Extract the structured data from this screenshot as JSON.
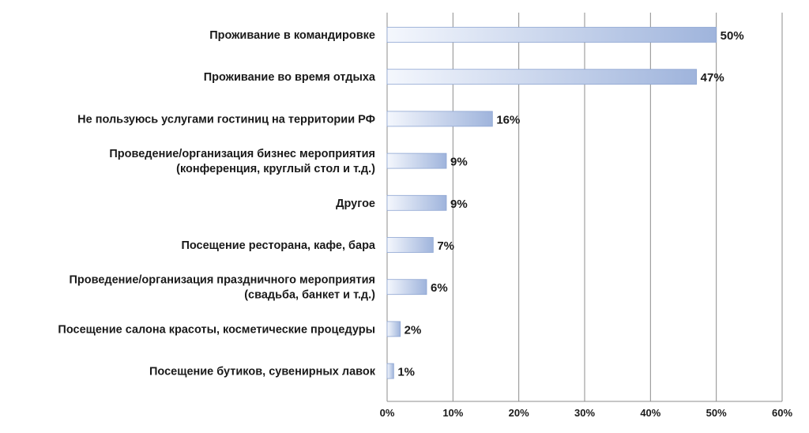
{
  "chart_data": {
    "type": "bar",
    "orientation": "horizontal",
    "categories": [
      [
        "Проживание в командировке"
      ],
      [
        "Проживание во время отдыха"
      ],
      [
        "Не пользуюсь услугами гостиниц на территории РФ"
      ],
      [
        "Проведение/организация бизнес мероприятия",
        "(конференция, круглый стол и т.д.)"
      ],
      [
        "Другое"
      ],
      [
        "Посещение ресторана, кафе, бара"
      ],
      [
        "Проведение/организация праздничного мероприятия",
        "(свадьба, банкет и т.д.)"
      ],
      [
        "Посещение салона красоты, косметические процедуры"
      ],
      [
        "Посещение бутиков, сувенирных лавок"
      ]
    ],
    "values": [
      50,
      47,
      16,
      9,
      9,
      7,
      6,
      2,
      1
    ],
    "value_labels": [
      "50%",
      "47%",
      "16%",
      "9%",
      "9%",
      "7%",
      "6%",
      "2%",
      "1%"
    ],
    "xlim": [
      0,
      60
    ],
    "x_ticks": [
      "0%",
      "10%",
      "20%",
      "30%",
      "40%",
      "50%",
      "60%"
    ],
    "grid": true,
    "colors": {
      "bar_light": "#f4f7fd",
      "bar_dark": "#9fb4dc",
      "bar_edge": "#8ea6d2",
      "grid": "#8c8c8c"
    }
  }
}
